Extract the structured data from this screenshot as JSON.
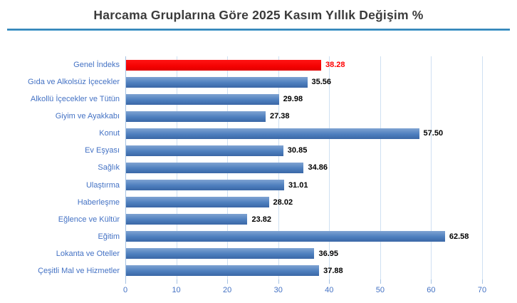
{
  "title": "Harcama Gruplarına Göre 2025 Kasım Yıllık Değişim %",
  "colors": {
    "title_text": "#3b3b3b",
    "title_underline": "#1f76ad",
    "bar_blue": "#4e7fbe",
    "bar_red": "#ff0000",
    "category_label": "#4472c4",
    "tick_label": "#4472c4",
    "value_label": "#000000",
    "value_label_highlight": "#ff0000",
    "gridline": "#cfe0f2",
    "axis": "#a6c3e3"
  },
  "chart_data": {
    "type": "bar",
    "orientation": "horizontal",
    "title": "Harcama Gruplarına Göre 2025 Kasım Yıllık Değişim %",
    "categories": [
      "Genel İndeks",
      "Gıda ve Alkolsüz İçecekler",
      "Alkollü İçecekler ve Tütün",
      "Giyim ve Ayakkabı",
      "Konut",
      "Ev Eşyası",
      "Sağlık",
      "Ulaştırma",
      "Haberleşme",
      "Eğlence ve Kültür",
      "Eğitim",
      "Lokanta ve Oteller",
      "Çeşitli Mal ve Hizmetler"
    ],
    "values": [
      38.28,
      35.56,
      29.98,
      27.38,
      57.5,
      30.85,
      34.86,
      31.01,
      28.02,
      23.82,
      62.58,
      36.95,
      37.88
    ],
    "value_labels": [
      "38.28",
      "35.56",
      "29.98",
      "27.38",
      "57.50",
      "30.85",
      "34.86",
      "31.01",
      "28.02",
      "23.82",
      "62.58",
      "36.95",
      "37.88"
    ],
    "highlight_index": 0,
    "xlabel": "",
    "ylabel": "",
    "xlim": [
      0,
      70
    ],
    "x_ticks": [
      0,
      10,
      20,
      30,
      40,
      50,
      60,
      70
    ],
    "grid": true,
    "legend": false
  }
}
